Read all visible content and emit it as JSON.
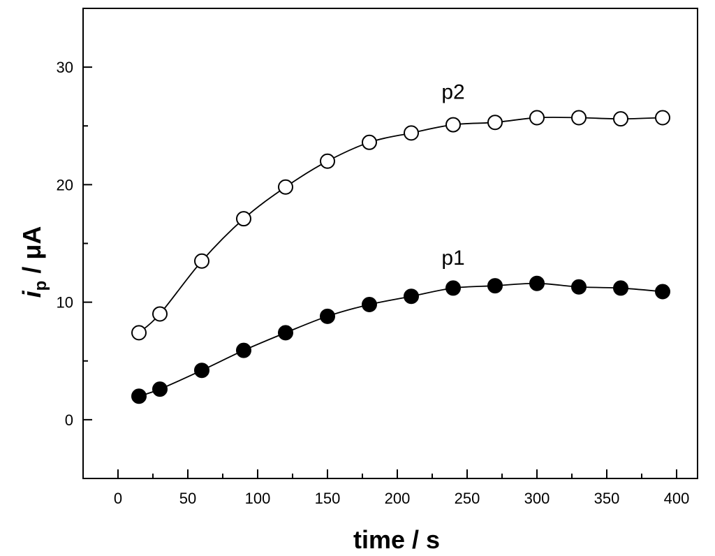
{
  "chart_data": {
    "type": "scatter",
    "xlabel": "time / s",
    "ylabel_main": "i",
    "ylabel_sub": "p",
    "ylabel_rest": " / μA",
    "xlim": [
      -25,
      415
    ],
    "ylim": [
      -5,
      35
    ],
    "xticks": [
      0,
      50,
      100,
      150,
      200,
      250,
      300,
      350,
      400
    ],
    "yticks": [
      0,
      10,
      20,
      30
    ],
    "colors": {
      "axis": "#000000",
      "p1_fill": "#000000",
      "p2_fill": "#ffffff"
    },
    "series": [
      {
        "name": "p2",
        "marker": "open-circle",
        "x": [
          15,
          30,
          60,
          90,
          120,
          150,
          180,
          210,
          240,
          270,
          300,
          330,
          360,
          390
        ],
        "y": [
          7.4,
          9.0,
          13.5,
          17.1,
          19.8,
          22.0,
          23.6,
          24.4,
          25.1,
          25.3,
          25.7,
          25.7,
          25.6,
          25.7
        ],
        "label_at": [
          240,
          27.3
        ]
      },
      {
        "name": "p1",
        "marker": "filled-circle",
        "x": [
          15,
          30,
          60,
          90,
          120,
          150,
          180,
          210,
          240,
          270,
          300,
          330,
          360,
          390
        ],
        "y": [
          2.0,
          2.6,
          4.2,
          5.9,
          7.4,
          8.8,
          9.8,
          10.5,
          11.2,
          11.4,
          11.6,
          11.3,
          11.2,
          10.9
        ],
        "label_at": [
          240,
          13.2
        ]
      }
    ]
  }
}
